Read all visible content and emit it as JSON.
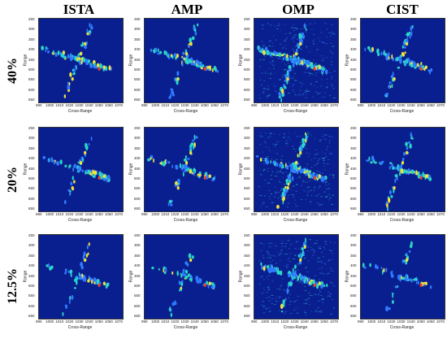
{
  "columns": [
    "ISTA",
    "AMP",
    "OMP",
    "CIST"
  ],
  "rows": [
    "40%",
    "20%",
    "12.5%"
  ],
  "axes": {
    "xlabel": "Cross-Range",
    "ylabel": "Range",
    "xticks": [
      "990",
      "1000",
      "1010",
      "1020",
      "1030",
      "1040",
      "1050",
      "1060",
      "1070"
    ],
    "yticks": [
      "250",
      "300",
      "350",
      "400",
      "450",
      "500",
      "550",
      "600",
      "650"
    ]
  },
  "colors": {
    "background": "#0a1f8f",
    "low": "#2f7bff",
    "mid": "#29d6c8",
    "high": "#f2e33a",
    "peak": "#e8402a"
  }
}
